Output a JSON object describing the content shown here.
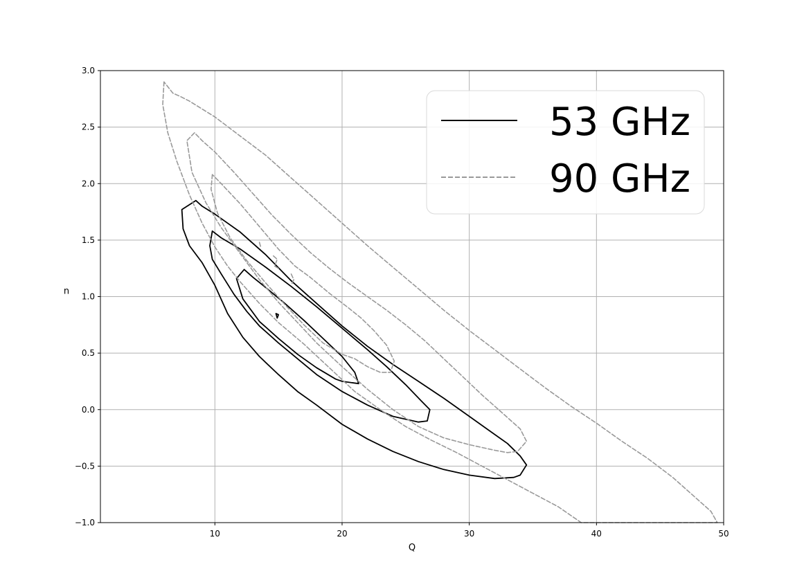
{
  "chart_data": {
    "type": "contour",
    "xlabel": "Q",
    "ylabel": "n",
    "xlim": [
      1,
      50
    ],
    "ylim": [
      -1.0,
      3.0
    ],
    "xticks": [
      "10",
      "20",
      "30",
      "40",
      "50"
    ],
    "xtick_values": [
      10,
      20,
      30,
      40,
      50
    ],
    "yticks": [
      "3.0",
      "2.5",
      "2.0",
      "1.5",
      "1.0",
      "0.5",
      "0.0",
      "−0.5",
      "−1.0"
    ],
    "ytick_values": [
      3.0,
      2.5,
      2.0,
      1.5,
      1.0,
      0.5,
      0.0,
      -0.5,
      -1.0
    ],
    "grid": true,
    "legend_position": "top-right",
    "series": [
      {
        "name": "53 GHz",
        "color": "#000000",
        "style": "solid",
        "contours": [
          [
            [
              8.5,
              1.85
            ],
            [
              7.4,
              1.77
            ],
            [
              7.5,
              1.6
            ],
            [
              8,
              1.45
            ],
            [
              9,
              1.3
            ],
            [
              10,
              1.1
            ],
            [
              11,
              0.85
            ],
            [
              12.2,
              0.64
            ],
            [
              13.5,
              0.47
            ],
            [
              15,
              0.31
            ],
            [
              16.5,
              0.16
            ],
            [
              18,
              0.04
            ],
            [
              20,
              -0.13
            ],
            [
              22,
              -0.26
            ],
            [
              24,
              -0.37
            ],
            [
              26,
              -0.46
            ],
            [
              28,
              -0.53
            ],
            [
              30,
              -0.58
            ],
            [
              32,
              -0.61
            ],
            [
              33.5,
              -0.6
            ],
            [
              34,
              -0.58
            ],
            [
              34.5,
              -0.49
            ],
            [
              34,
              -0.41
            ],
            [
              33,
              -0.3
            ],
            [
              31.5,
              -0.18
            ],
            [
              30,
              -0.06
            ],
            [
              28,
              0.1
            ],
            [
              26,
              0.25
            ],
            [
              24,
              0.4
            ],
            [
              22,
              0.56
            ],
            [
              20,
              0.74
            ],
            [
              18,
              0.94
            ],
            [
              16,
              1.14
            ],
            [
              14,
              1.37
            ],
            [
              12,
              1.57
            ],
            [
              10,
              1.73
            ],
            [
              9,
              1.8
            ],
            [
              8.5,
              1.85
            ]
          ],
          [
            [
              9.8,
              1.58
            ],
            [
              9.6,
              1.45
            ],
            [
              9.8,
              1.33
            ],
            [
              10.5,
              1.2
            ],
            [
              11.5,
              1.02
            ],
            [
              12.5,
              0.87
            ],
            [
              13.5,
              0.74
            ],
            [
              15,
              0.59
            ],
            [
              16.5,
              0.45
            ],
            [
              18,
              0.31
            ],
            [
              20,
              0.16
            ],
            [
              22,
              0.04
            ],
            [
              24,
              -0.06
            ],
            [
              26,
              -0.11
            ],
            [
              26.7,
              -0.1
            ],
            [
              26.9,
              0.0
            ],
            [
              26.2,
              0.08
            ],
            [
              25,
              0.22
            ],
            [
              23.5,
              0.38
            ],
            [
              22,
              0.53
            ],
            [
              20,
              0.72
            ],
            [
              18,
              0.91
            ],
            [
              16,
              1.09
            ],
            [
              14,
              1.26
            ],
            [
              12,
              1.42
            ],
            [
              10.5,
              1.52
            ],
            [
              9.8,
              1.58
            ]
          ],
          [
            [
              12.3,
              1.24
            ],
            [
              11.7,
              1.16
            ],
            [
              12.2,
              0.98
            ],
            [
              13.5,
              0.78
            ],
            [
              15,
              0.63
            ],
            [
              16.5,
              0.49
            ],
            [
              18,
              0.37
            ],
            [
              19.5,
              0.27
            ],
            [
              20,
              0.25
            ],
            [
              21.3,
              0.23
            ],
            [
              21,
              0.33
            ],
            [
              20,
              0.47
            ],
            [
              18.5,
              0.63
            ],
            [
              17,
              0.79
            ],
            [
              15.5,
              0.94
            ],
            [
              14,
              1.08
            ],
            [
              13,
              1.17
            ],
            [
              12.3,
              1.24
            ]
          ],
          [
            [
              14.8,
              0.85
            ],
            [
              14.9,
              0.81
            ],
            [
              15,
              0.84
            ],
            [
              14.8,
              0.85
            ]
          ]
        ]
      },
      {
        "name": "90 GHz",
        "color": "#999999",
        "style": "dashed",
        "contours": [
          [
            [
              6,
              2.9
            ],
            [
              5.9,
              2.7
            ],
            [
              6.3,
              2.45
            ],
            [
              7,
              2.2
            ],
            [
              8,
              1.9
            ],
            [
              9,
              1.65
            ],
            [
              10,
              1.44
            ],
            [
              11,
              1.27
            ],
            [
              12,
              1.13
            ],
            [
              13.5,
              0.94
            ],
            [
              15,
              0.77
            ],
            [
              17,
              0.58
            ],
            [
              19,
              0.37
            ],
            [
              21,
              0.16
            ],
            [
              23,
              0.0
            ],
            [
              25,
              -0.15
            ],
            [
              27,
              -0.27
            ],
            [
              29,
              -0.38
            ],
            [
              31,
              -0.5
            ],
            [
              33,
              -0.62
            ],
            [
              35,
              -0.74
            ],
            [
              37,
              -0.86
            ],
            [
              38.8,
              -1.0
            ],
            [
              39,
              -1.0
            ],
            [
              49.5,
              -1.0
            ],
            [
              49,
              -0.9
            ],
            [
              48,
              -0.8
            ],
            [
              46,
              -0.6
            ],
            [
              44,
              -0.43
            ],
            [
              42,
              -0.28
            ],
            [
              40,
              -0.12
            ],
            [
              38,
              0.03
            ],
            [
              36,
              0.19
            ],
            [
              34,
              0.36
            ],
            [
              32,
              0.53
            ],
            [
              30,
              0.7
            ],
            [
              28,
              0.88
            ],
            [
              26,
              1.07
            ],
            [
              24,
              1.26
            ],
            [
              22,
              1.45
            ],
            [
              20,
              1.65
            ],
            [
              18,
              1.85
            ],
            [
              16,
              2.05
            ],
            [
              14,
              2.25
            ],
            [
              12,
              2.42
            ],
            [
              10,
              2.59
            ],
            [
              8,
              2.73
            ],
            [
              7.3,
              2.77
            ],
            [
              6.7,
              2.8
            ],
            [
              6,
              2.9
            ]
          ],
          [
            [
              8.4,
              2.45
            ],
            [
              7.8,
              2.38
            ],
            [
              8.2,
              2.1
            ],
            [
              9.3,
              1.83
            ],
            [
              10.5,
              1.61
            ],
            [
              12,
              1.38
            ],
            [
              13.5,
              1.15
            ],
            [
              15,
              0.95
            ],
            [
              16.5,
              0.77
            ],
            [
              18,
              0.59
            ],
            [
              20,
              0.38
            ],
            [
              22,
              0.18
            ],
            [
              24,
              0.0
            ],
            [
              26,
              -0.15
            ],
            [
              28,
              -0.25
            ],
            [
              30,
              -0.31
            ],
            [
              32,
              -0.36
            ],
            [
              33,
              -0.38
            ],
            [
              33.8,
              -0.37
            ],
            [
              34.5,
              -0.28
            ],
            [
              34,
              -0.17
            ],
            [
              32.5,
              -0.02
            ],
            [
              31,
              0.13
            ],
            [
              29.5,
              0.29
            ],
            [
              28,
              0.45
            ],
            [
              26.5,
              0.61
            ],
            [
              25,
              0.75
            ],
            [
              23.5,
              0.88
            ],
            [
              22,
              1.0
            ],
            [
              20.5,
              1.12
            ],
            [
              19,
              1.25
            ],
            [
              17.5,
              1.39
            ],
            [
              16,
              1.55
            ],
            [
              14.5,
              1.72
            ],
            [
              13,
              1.91
            ],
            [
              11.5,
              2.1
            ],
            [
              10,
              2.28
            ],
            [
              9,
              2.38
            ],
            [
              8.4,
              2.45
            ]
          ],
          [
            [
              9.8,
              2.08
            ],
            [
              9.7,
              1.95
            ],
            [
              10.2,
              1.74
            ],
            [
              11.2,
              1.52
            ],
            [
              12.5,
              1.32
            ],
            [
              14,
              1.12
            ],
            [
              15.5,
              0.93
            ],
            [
              17,
              0.75
            ],
            [
              18.5,
              0.59
            ],
            [
              20,
              0.49
            ],
            [
              21,
              0.45
            ],
            [
              22,
              0.38
            ],
            [
              23,
              0.33
            ],
            [
              23.8,
              0.33
            ],
            [
              24.1,
              0.43
            ],
            [
              23.5,
              0.57
            ],
            [
              22.5,
              0.7
            ],
            [
              21.5,
              0.81
            ],
            [
              20.5,
              0.9
            ],
            [
              19,
              1.03
            ],
            [
              17.5,
              1.17
            ],
            [
              16.3,
              1.27
            ],
            [
              15,
              1.42
            ],
            [
              13.5,
              1.62
            ],
            [
              12,
              1.82
            ],
            [
              10.5,
              2.0
            ],
            [
              9.8,
              2.08
            ]
          ],
          [
            [
              13.5,
              1.48
            ],
            [
              13.6,
              1.44
            ]
          ],
          [
            [
              14.6,
              1.36
            ],
            [
              14.9,
              1.33
            ],
            [
              14.7,
              1.27
            ],
            [
              15,
              1.25
            ]
          ],
          [
            [
              16,
              1.2
            ],
            [
              16.2,
              1.15
            ],
            [
              16,
              1.1
            ]
          ]
        ]
      }
    ]
  }
}
